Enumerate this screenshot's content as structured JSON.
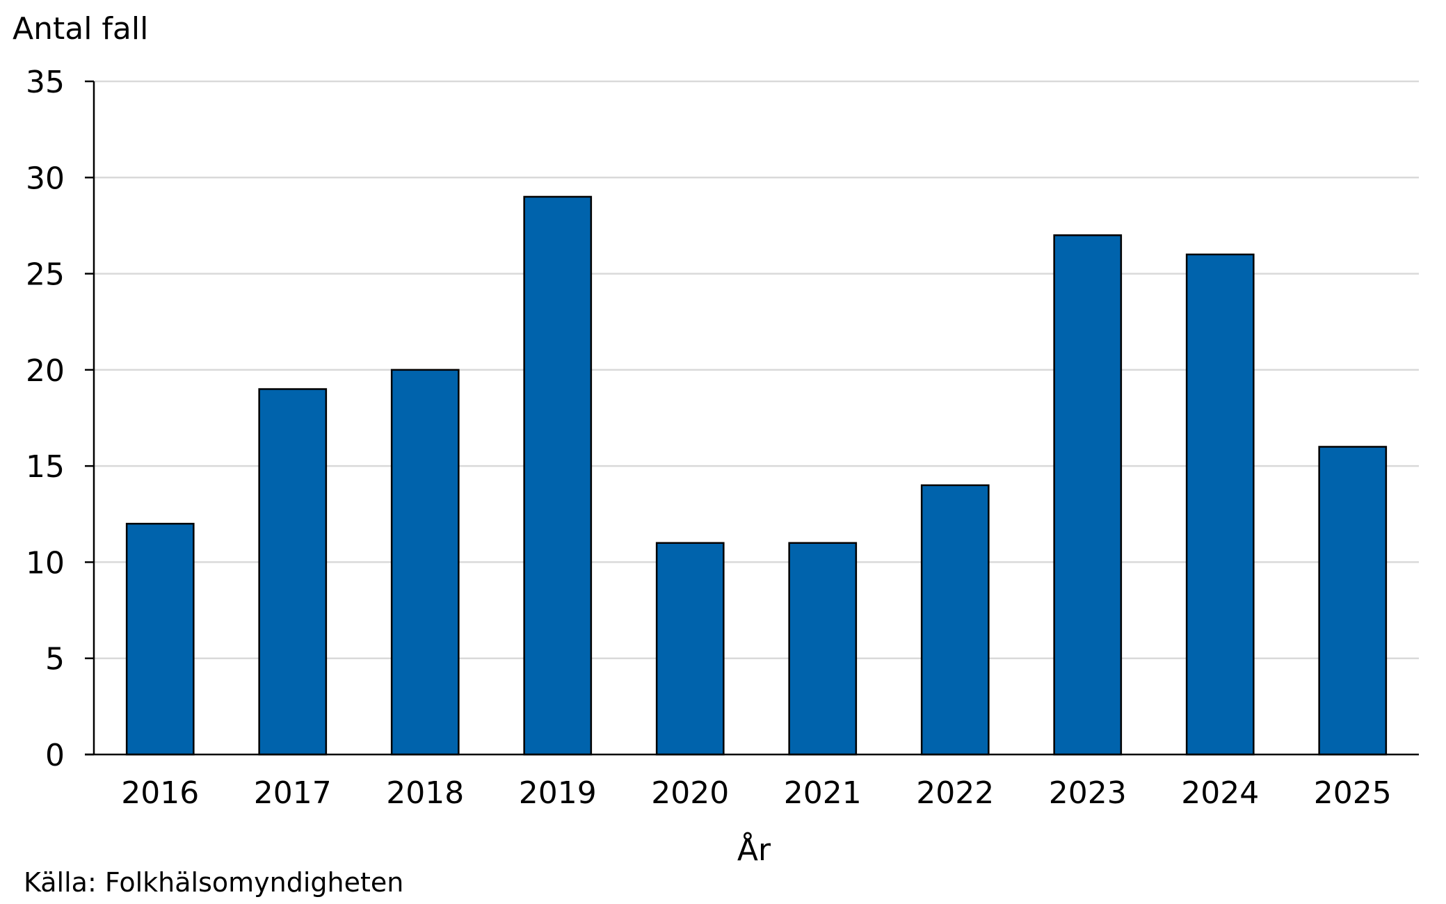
{
  "chart_data": {
    "type": "bar",
    "categories": [
      "2016",
      "2017",
      "2018",
      "2019",
      "2020",
      "2021",
      "2022",
      "2023",
      "2024",
      "2025"
    ],
    "values": [
      12,
      19,
      20,
      29,
      11,
      11,
      14,
      27,
      26,
      16
    ],
    "title": "",
    "xlabel": "År",
    "ylabel": "Antal fall",
    "ylim": [
      0,
      35
    ],
    "yticks": [
      "0",
      "5",
      "10",
      "15",
      "20",
      "25",
      "30",
      "35"
    ],
    "grid": true,
    "legend": "none",
    "bar_color": "#0063AC",
    "bar_edge_color": "#000000",
    "grid_color": "#D9D9D9"
  },
  "source": "Källa: Folkhälsomyndigheten"
}
